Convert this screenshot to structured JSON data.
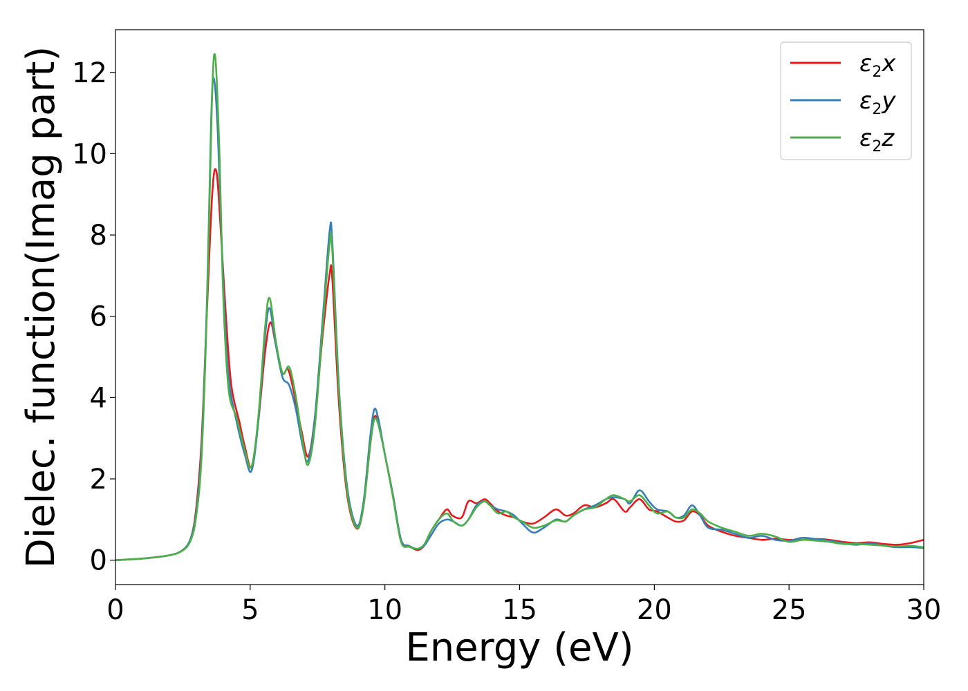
{
  "chart_data": {
    "type": "line",
    "xlabel": "Energy (eV)",
    "ylabel": "Dielec. function(Imag part)",
    "xlim": [
      0,
      30
    ],
    "ylim": [
      -0.6,
      13.05
    ],
    "xticks": [
      0,
      5,
      10,
      15,
      20,
      25,
      30
    ],
    "yticks": [
      0,
      2,
      4,
      6,
      8,
      10,
      12
    ],
    "grid": false,
    "legend_position": "top-right",
    "series": [
      {
        "name": "ε₂x",
        "label_base": "ε",
        "label_sub": "2",
        "label_var": "x",
        "color": "#e41a1c",
        "x": [
          0,
          1,
          2,
          2.5,
          2.8,
          3.0,
          3.2,
          3.4,
          3.6,
          3.75,
          3.9,
          4.1,
          4.3,
          4.6,
          4.8,
          5.05,
          5.3,
          5.55,
          5.75,
          5.95,
          6.2,
          6.4,
          6.6,
          6.9,
          7.15,
          7.4,
          7.7,
          7.95,
          8.05,
          8.3,
          8.6,
          8.95,
          9.2,
          9.45,
          9.6,
          9.75,
          10.0,
          10.3,
          10.6,
          10.9,
          11.2,
          11.45,
          11.7,
          12.0,
          12.3,
          12.5,
          12.85,
          13.1,
          13.4,
          13.7,
          13.9,
          14.2,
          14.5,
          14.8,
          15.1,
          15.5,
          15.9,
          16.35,
          16.7,
          17.0,
          17.4,
          17.8,
          18.2,
          18.5,
          18.9,
          19.1,
          19.45,
          19.8,
          20.1,
          20.5,
          20.8,
          21.1,
          21.4,
          21.7,
          22.0,
          22.5,
          23.0,
          23.5,
          24.0,
          24.5,
          25.0,
          25.5,
          26.0,
          26.5,
          27.0,
          27.5,
          28.0,
          28.5,
          29.0,
          29.5,
          30.0
        ],
        "y": [
          0.0,
          0.04,
          0.12,
          0.25,
          0.55,
          1.3,
          3.0,
          6.2,
          9.1,
          9.55,
          8.2,
          6.0,
          4.3,
          3.4,
          2.8,
          2.3,
          3.4,
          5.1,
          5.85,
          5.3,
          4.6,
          4.7,
          4.2,
          3.2,
          2.55,
          3.5,
          5.6,
          7.05,
          6.9,
          3.8,
          1.6,
          0.78,
          1.3,
          2.8,
          3.5,
          3.4,
          2.6,
          1.6,
          0.5,
          0.35,
          0.25,
          0.35,
          0.7,
          1.0,
          1.25,
          1.1,
          1.05,
          1.45,
          1.4,
          1.5,
          1.4,
          1.2,
          1.1,
          1.05,
          0.95,
          0.9,
          1.05,
          1.25,
          1.1,
          1.15,
          1.35,
          1.3,
          1.4,
          1.5,
          1.2,
          1.3,
          1.5,
          1.25,
          1.2,
          1.05,
          0.95,
          0.98,
          1.2,
          1.1,
          0.85,
          0.7,
          0.6,
          0.55,
          0.5,
          0.53,
          0.5,
          0.5,
          0.52,
          0.5,
          0.45,
          0.42,
          0.44,
          0.4,
          0.38,
          0.42,
          0.5
        ]
      },
      {
        "name": "ε₂y",
        "label_base": "ε",
        "label_sub": "2",
        "label_var": "y",
        "color": "#377eb8",
        "x": [
          0,
          1,
          2,
          2.5,
          2.8,
          3.0,
          3.2,
          3.4,
          3.55,
          3.65,
          3.8,
          4.0,
          4.2,
          4.5,
          4.8,
          5.05,
          5.3,
          5.55,
          5.72,
          5.95,
          6.2,
          6.45,
          6.7,
          6.95,
          7.15,
          7.4,
          7.7,
          7.95,
          8.05,
          8.3,
          8.6,
          8.95,
          9.2,
          9.45,
          9.6,
          9.75,
          10.0,
          10.3,
          10.6,
          10.9,
          11.2,
          11.45,
          11.7,
          12.0,
          12.3,
          12.55,
          12.85,
          13.1,
          13.4,
          13.7,
          13.9,
          14.2,
          14.5,
          14.8,
          15.1,
          15.5,
          15.9,
          16.35,
          16.7,
          17.0,
          17.4,
          17.8,
          18.2,
          18.5,
          18.9,
          19.1,
          19.45,
          19.8,
          20.1,
          20.5,
          20.8,
          21.1,
          21.4,
          21.7,
          22.0,
          22.5,
          23.0,
          23.5,
          24.0,
          24.5,
          25.0,
          25.5,
          26.0,
          26.5,
          27.0,
          27.5,
          28.0,
          28.5,
          29.0,
          29.5,
          30.0
        ],
        "y": [
          0.0,
          0.04,
          0.12,
          0.25,
          0.55,
          1.2,
          2.8,
          6.5,
          10.8,
          11.85,
          10.5,
          6.8,
          4.5,
          3.4,
          2.6,
          2.2,
          3.4,
          5.5,
          6.2,
          5.3,
          4.5,
          4.3,
          3.7,
          2.8,
          2.45,
          3.5,
          6.0,
          8.1,
          7.8,
          4.2,
          1.8,
          0.85,
          1.4,
          3.0,
          3.7,
          3.5,
          2.6,
          1.6,
          0.5,
          0.35,
          0.28,
          0.35,
          0.6,
          0.9,
          1.0,
          0.95,
          0.85,
          1.0,
          1.35,
          1.45,
          1.35,
          1.25,
          1.2,
          1.1,
          0.9,
          0.68,
          0.8,
          1.0,
          0.95,
          1.1,
          1.25,
          1.35,
          1.5,
          1.55,
          1.5,
          1.4,
          1.72,
          1.45,
          1.25,
          1.2,
          1.05,
          1.1,
          1.35,
          1.1,
          0.8,
          0.75,
          0.65,
          0.55,
          0.6,
          0.5,
          0.48,
          0.55,
          0.52,
          0.48,
          0.42,
          0.38,
          0.42,
          0.36,
          0.32,
          0.32,
          0.3
        ]
      },
      {
        "name": "ε₂z",
        "label_base": "ε",
        "label_sub": "2",
        "label_var": "z",
        "color": "#4daf4a",
        "x": [
          0,
          1,
          2,
          2.5,
          2.8,
          3.0,
          3.2,
          3.4,
          3.58,
          3.7,
          3.85,
          4.0,
          4.2,
          4.5,
          4.8,
          5.05,
          5.3,
          5.55,
          5.72,
          5.95,
          6.2,
          6.45,
          6.7,
          6.95,
          7.15,
          7.4,
          7.7,
          7.95,
          8.05,
          8.3,
          8.6,
          8.95,
          9.2,
          9.45,
          9.6,
          9.75,
          10.0,
          10.3,
          10.6,
          10.9,
          11.2,
          11.45,
          11.7,
          12.0,
          12.3,
          12.55,
          12.85,
          13.1,
          13.4,
          13.7,
          13.9,
          14.2,
          14.5,
          14.8,
          15.1,
          15.5,
          15.9,
          16.35,
          16.7,
          17.0,
          17.4,
          17.8,
          18.2,
          18.5,
          18.9,
          19.1,
          19.45,
          19.8,
          20.1,
          20.5,
          20.8,
          21.1,
          21.4,
          21.7,
          22.0,
          22.5,
          23.0,
          23.5,
          24.0,
          24.5,
          25.0,
          25.5,
          26.0,
          26.5,
          27.0,
          27.5,
          28.0,
          28.5,
          29.0,
          29.5,
          30.0
        ],
        "y": [
          0.0,
          0.04,
          0.12,
          0.24,
          0.5,
          1.1,
          2.6,
          6.3,
          11.3,
          12.4,
          10.2,
          6.5,
          4.2,
          3.5,
          2.7,
          2.3,
          3.5,
          5.7,
          6.45,
          5.4,
          4.6,
          4.75,
          4.0,
          2.9,
          2.35,
          3.3,
          5.8,
          7.8,
          7.6,
          4.1,
          1.7,
          0.8,
          1.3,
          2.8,
          3.45,
          3.35,
          2.6,
          1.55,
          0.45,
          0.33,
          0.28,
          0.38,
          0.7,
          1.0,
          1.15,
          0.95,
          0.85,
          1.0,
          1.3,
          1.45,
          1.35,
          1.15,
          1.2,
          1.05,
          0.95,
          0.8,
          0.85,
          0.98,
          0.95,
          1.1,
          1.25,
          1.3,
          1.5,
          1.6,
          1.5,
          1.45,
          1.6,
          1.35,
          1.15,
          1.2,
          1.05,
          1.05,
          1.25,
          1.15,
          0.95,
          0.8,
          0.7,
          0.6,
          0.65,
          0.58,
          0.45,
          0.5,
          0.48,
          0.45,
          0.4,
          0.4,
          0.38,
          0.36,
          0.34,
          0.35,
          0.32
        ]
      }
    ]
  }
}
